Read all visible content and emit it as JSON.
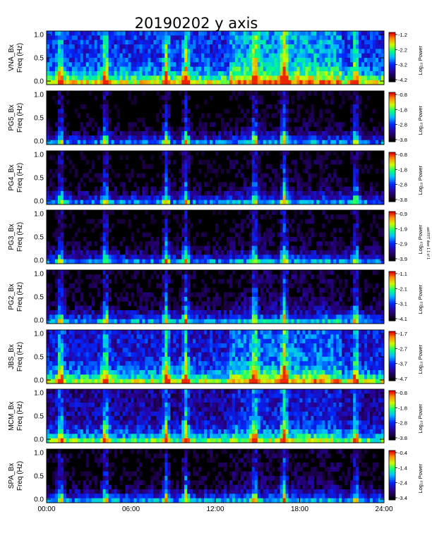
{
  "page": {
    "title": "20190202 y axis"
  },
  "side_note": "ast FFT dwe 1 1 of 1",
  "x_ticks": [
    "00:00",
    "06:00",
    "12:00",
    "18:00",
    "24:00"
  ],
  "y_ticks": [
    "0.0",
    "0.5",
    "1.0"
  ],
  "colorbar_label": "Log₁₀ Power",
  "chart_data": [
    {
      "type": "heatmap",
      "station": "VNA",
      "channel": "VNA_Bx",
      "ylabel": "Freq (Hz)",
      "xlim_hours": [
        0,
        24
      ],
      "ylim": [
        0,
        1.0
      ],
      "cbar_ticks": [
        "-1.2",
        "-2.2",
        "-3.2",
        "-4.2"
      ],
      "cbar_range": [
        -4.2,
        -1.2
      ],
      "intensity_level": 0.6
    },
    {
      "type": "heatmap",
      "station": "PG5",
      "channel": "PG5_Bx",
      "ylabel": "Freq (Hz)",
      "xlim_hours": [
        0,
        24
      ],
      "ylim": [
        0,
        1.0
      ],
      "cbar_ticks": [
        "-0.8",
        "-1.8",
        "-2.8",
        "-3.8"
      ],
      "cbar_range": [
        -3.8,
        -0.8
      ],
      "intensity_level": 0.15
    },
    {
      "type": "heatmap",
      "station": "PG4",
      "channel": "PG4_Bx",
      "ylabel": "Freq (Hz)",
      "xlim_hours": [
        0,
        24
      ],
      "ylim": [
        0,
        1.0
      ],
      "cbar_ticks": [
        "-0.8",
        "-1.8",
        "-2.8",
        "-3.8"
      ],
      "cbar_range": [
        -3.8,
        -0.8
      ],
      "intensity_level": 0.18
    },
    {
      "type": "heatmap",
      "station": "PG3",
      "channel": "PG3_Bx",
      "ylabel": "Freq (Hz)",
      "xlim_hours": [
        0,
        24
      ],
      "ylim": [
        0,
        1.0
      ],
      "cbar_ticks": [
        "-0.9",
        "-1.9",
        "-2.9",
        "-3.9"
      ],
      "cbar_range": [
        -3.9,
        -0.9
      ],
      "intensity_level": 0.18
    },
    {
      "type": "heatmap",
      "station": "PG2",
      "channel": "PG2_Bx",
      "ylabel": "Freq (Hz)",
      "xlim_hours": [
        0,
        24
      ],
      "ylim": [
        0,
        1.0
      ],
      "cbar_ticks": [
        "-1.1",
        "-2.1",
        "-3.1",
        "-4.1"
      ],
      "cbar_range": [
        -4.1,
        -1.1
      ],
      "intensity_level": 0.25
    },
    {
      "type": "heatmap",
      "station": "JBS",
      "channel": "JBS_Bx",
      "ylabel": "Freq (Hz)",
      "xlim_hours": [
        0,
        24
      ],
      "ylim": [
        0,
        1.0
      ],
      "cbar_ticks": [
        "-1.7",
        "-2.7",
        "-3.7",
        "-4.7"
      ],
      "cbar_range": [
        -4.7,
        -1.7
      ],
      "intensity_level": 0.5
    },
    {
      "type": "heatmap",
      "station": "MCM",
      "channel": "MCM_Bx",
      "ylabel": "Freq (Hz)",
      "xlim_hours": [
        0,
        24
      ],
      "ylim": [
        0,
        1.0
      ],
      "cbar_ticks": [
        "-0.8",
        "-1.8",
        "-2.8",
        "-3.8"
      ],
      "cbar_range": [
        -3.8,
        -0.8
      ],
      "intensity_level": 0.35
    },
    {
      "type": "heatmap",
      "station": "SPA",
      "channel": "SPA_Bx",
      "ylabel": "Freq (Hz)",
      "xlim_hours": [
        0,
        24
      ],
      "ylim": [
        0,
        1.0
      ],
      "cbar_ticks": [
        "-0.4",
        "-1.4",
        "-2.4",
        "-3.4"
      ],
      "cbar_range": [
        -3.4,
        -0.4
      ],
      "intensity_level": 0.22
    }
  ]
}
